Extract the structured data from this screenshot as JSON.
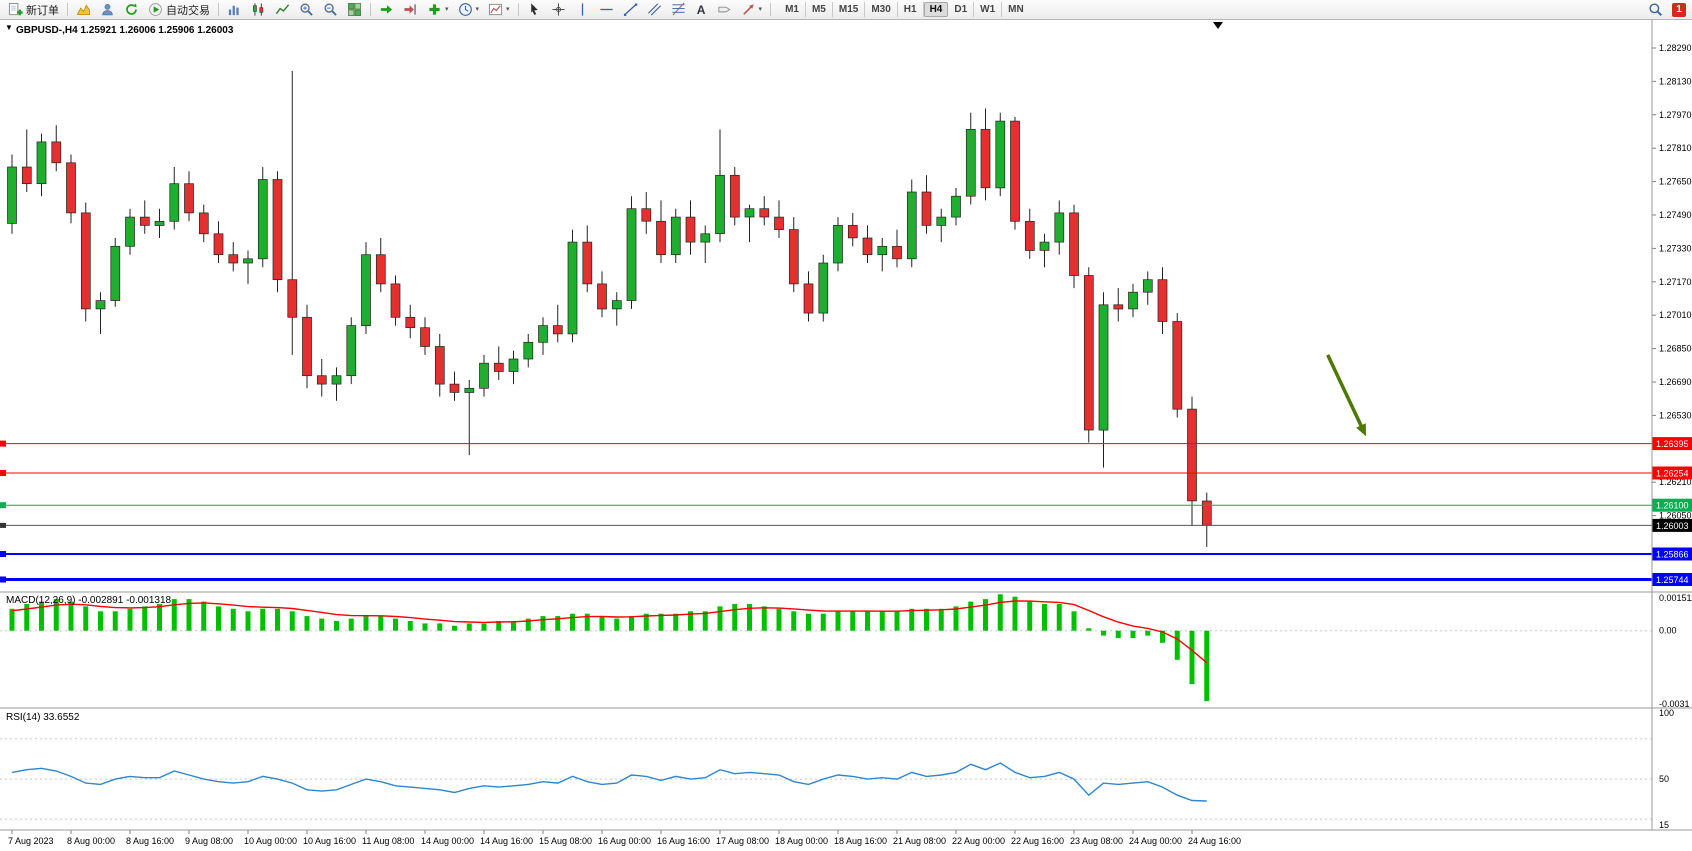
{
  "toolbar": {
    "new_order": "新订单",
    "autotrading": "自动交易",
    "timeframes": [
      "M1",
      "M5",
      "M15",
      "M30",
      "H1",
      "H4",
      "D1",
      "W1",
      "MN"
    ],
    "active_timeframe": "H4",
    "notification_count": "1",
    "icons": [
      "new-order",
      "market-watch",
      "profiles",
      "refresh",
      "autotrading-play",
      "bar-chart",
      "candlestick-chart",
      "line-chart",
      "zoom-in",
      "zoom-out",
      "tile-windows",
      "auto-scroll",
      "chart-shift",
      "add-indicator",
      "periods-clock",
      "templates",
      "cursor",
      "crosshair",
      "vertical-line",
      "horizontal-line",
      "trendline",
      "equidistant-channel",
      "fibonacci",
      "text",
      "text-label",
      "arrows",
      "search",
      "notifications"
    ]
  },
  "chart_data": {
    "type": "candlestick",
    "symbol": "GBPUSD-",
    "period": "H4",
    "header": "GBPUSD-,H4  1.25921 1.26006 1.25906 1.26003",
    "ohlc_values": [
      "1.25921",
      "1.26006",
      "1.25906",
      "1.26003"
    ],
    "colors": {
      "bull": "#1fae2e",
      "bear": "#e53030",
      "wick": "#222222",
      "macd_hist": "#00c000",
      "macd_signal": "#ff0000",
      "rsi_line": "#2e86d0",
      "line_red": "#ff0000",
      "line_green": "#00b050",
      "line_blue": "#0000ff",
      "bid_tag": "#000000",
      "arrow": "#4c7a00"
    },
    "price_axis_labels": [
      "1.28290",
      "1.28130",
      "1.27970",
      "1.27810",
      "1.27650",
      "1.27490",
      "1.27330",
      "1.27170",
      "1.27010",
      "1.26850",
      "1.26690",
      "1.26530",
      "1.26210",
      "1.26050"
    ],
    "hlines": [
      {
        "price": 1.26395,
        "label": "1.26395",
        "color": "#ff0000",
        "width": 1
      },
      {
        "price": 1.26254,
        "label": "1.26254",
        "color": "#ff0000",
        "width": 1
      },
      {
        "price": 1.261,
        "label": "1.26100",
        "color": "#00b050",
        "width": 1
      },
      {
        "price": 1.25866,
        "label": "1.25866",
        "color": "#0000ff",
        "width": 2
      },
      {
        "price": 1.25744,
        "label": "1.25744",
        "color": "#0000ff",
        "width": 3
      }
    ],
    "bid": {
      "price": 1.26003,
      "label": "1.26003"
    },
    "candles": [
      [
        1.2745,
        1.2778,
        1.274,
        1.2772
      ],
      [
        1.2772,
        1.279,
        1.276,
        1.2764
      ],
      [
        1.2764,
        1.2788,
        1.2758,
        1.2784
      ],
      [
        1.2784,
        1.2792,
        1.277,
        1.2774
      ],
      [
        1.2774,
        1.2778,
        1.2745,
        1.275
      ],
      [
        1.275,
        1.2755,
        1.2698,
        1.2704
      ],
      [
        1.2704,
        1.2712,
        1.2692,
        1.2708
      ],
      [
        1.2708,
        1.2738,
        1.2705,
        1.2734
      ],
      [
        1.2734,
        1.2752,
        1.273,
        1.2748
      ],
      [
        1.2748,
        1.2756,
        1.274,
        1.2744
      ],
      [
        1.2744,
        1.2752,
        1.2738,
        1.2746
      ],
      [
        1.2746,
        1.2772,
        1.2742,
        1.2764
      ],
      [
        1.2764,
        1.277,
        1.2746,
        1.275
      ],
      [
        1.275,
        1.2754,
        1.2736,
        1.274
      ],
      [
        1.274,
        1.2746,
        1.2726,
        1.273
      ],
      [
        1.273,
        1.2736,
        1.2722,
        1.2726
      ],
      [
        1.2726,
        1.2732,
        1.2716,
        1.2728
      ],
      [
        1.2728,
        1.2772,
        1.2724,
        1.2766
      ],
      [
        1.2766,
        1.277,
        1.2712,
        1.2718
      ],
      [
        1.2718,
        1.2818,
        1.2682,
        1.27
      ],
      [
        1.27,
        1.2706,
        1.2666,
        1.2672
      ],
      [
        1.2672,
        1.268,
        1.2662,
        1.2668
      ],
      [
        1.2668,
        1.2676,
        1.266,
        1.2672
      ],
      [
        1.2672,
        1.27,
        1.2668,
        1.2696
      ],
      [
        1.2696,
        1.2736,
        1.2692,
        1.273
      ],
      [
        1.273,
        1.2738,
        1.2712,
        1.2716
      ],
      [
        1.2716,
        1.272,
        1.2696,
        1.27
      ],
      [
        1.27,
        1.2706,
        1.269,
        1.2695
      ],
      [
        1.2695,
        1.27,
        1.2682,
        1.2686
      ],
      [
        1.2686,
        1.2692,
        1.2662,
        1.2668
      ],
      [
        1.2668,
        1.2674,
        1.266,
        1.2664
      ],
      [
        1.2664,
        1.267,
        1.2634,
        1.2666
      ],
      [
        1.2666,
        1.2682,
        1.2662,
        1.2678
      ],
      [
        1.2678,
        1.2686,
        1.267,
        1.2674
      ],
      [
        1.2674,
        1.2684,
        1.2668,
        1.268
      ],
      [
        1.268,
        1.2692,
        1.2676,
        1.2688
      ],
      [
        1.2688,
        1.27,
        1.2682,
        1.2696
      ],
      [
        1.2696,
        1.2706,
        1.2688,
        1.2692
      ],
      [
        1.2692,
        1.2742,
        1.2688,
        1.2736
      ],
      [
        1.2736,
        1.2744,
        1.2712,
        1.2716
      ],
      [
        1.2716,
        1.2722,
        1.27,
        1.2704
      ],
      [
        1.2704,
        1.2712,
        1.2696,
        1.2708
      ],
      [
        1.2708,
        1.2758,
        1.2704,
        1.2752
      ],
      [
        1.2752,
        1.276,
        1.274,
        1.2746
      ],
      [
        1.2746,
        1.2756,
        1.2726,
        1.273
      ],
      [
        1.273,
        1.2752,
        1.2726,
        1.2748
      ],
      [
        1.2748,
        1.2756,
        1.273,
        1.2736
      ],
      [
        1.2736,
        1.2744,
        1.2726,
        1.274
      ],
      [
        1.274,
        1.279,
        1.2736,
        1.2768
      ],
      [
        1.2768,
        1.2772,
        1.2744,
        1.2748
      ],
      [
        1.2748,
        1.2754,
        1.2736,
        1.2752
      ],
      [
        1.2752,
        1.2758,
        1.2744,
        1.2748
      ],
      [
        1.2748,
        1.2756,
        1.2738,
        1.2742
      ],
      [
        1.2742,
        1.2748,
        1.2712,
        1.2716
      ],
      [
        1.2716,
        1.2722,
        1.2698,
        1.2702
      ],
      [
        1.2702,
        1.273,
        1.2698,
        1.2726
      ],
      [
        1.2726,
        1.2748,
        1.2722,
        1.2744
      ],
      [
        1.2744,
        1.275,
        1.2734,
        1.2738
      ],
      [
        1.2738,
        1.2744,
        1.2726,
        1.273
      ],
      [
        1.273,
        1.2738,
        1.2722,
        1.2734
      ],
      [
        1.2734,
        1.2742,
        1.2724,
        1.2728
      ],
      [
        1.2728,
        1.2766,
        1.2724,
        1.276
      ],
      [
        1.276,
        1.2768,
        1.274,
        1.2744
      ],
      [
        1.2744,
        1.2752,
        1.2736,
        1.2748
      ],
      [
        1.2748,
        1.2762,
        1.2744,
        1.2758
      ],
      [
        1.2758,
        1.2798,
        1.2754,
        1.279
      ],
      [
        1.279,
        1.28,
        1.2756,
        1.2762
      ],
      [
        1.2762,
        1.2798,
        1.2758,
        1.2794
      ],
      [
        1.2794,
        1.2796,
        1.2742,
        1.2746
      ],
      [
        1.2746,
        1.2752,
        1.2728,
        1.2732
      ],
      [
        1.2732,
        1.274,
        1.2724,
        1.2736
      ],
      [
        1.2736,
        1.2756,
        1.273,
        1.275
      ],
      [
        1.275,
        1.2754,
        1.2714,
        1.272
      ],
      [
        1.272,
        1.2724,
        1.264,
        1.2646
      ],
      [
        1.2646,
        1.2712,
        1.2628,
        1.2706
      ],
      [
        1.2706,
        1.2714,
        1.2698,
        1.2704
      ],
      [
        1.2704,
        1.2716,
        1.27,
        1.2712
      ],
      [
        1.2712,
        1.2722,
        1.2706,
        1.2718
      ],
      [
        1.2718,
        1.2724,
        1.2692,
        1.2698
      ],
      [
        1.2698,
        1.2702,
        1.2652,
        1.2656
      ],
      [
        1.2656,
        1.2662,
        1.26,
        1.2612
      ],
      [
        1.2612,
        1.2616,
        1.259,
        1.26003
      ]
    ],
    "time_labels": [
      "7 Aug 2023",
      "8 Aug 00:00",
      "8 Aug 16:00",
      "9 Aug 08:00",
      "10 Aug 00:00",
      "10 Aug 16:00",
      "11 Aug 08:00",
      "14 Aug 00:00",
      "14 Aug 16:00",
      "15 Aug 08:00",
      "16 Aug 00:00",
      "16 Aug 16:00",
      "17 Aug 08:00",
      "18 Aug 00:00",
      "18 Aug 16:00",
      "21 Aug 08:00",
      "22 Aug 00:00",
      "22 Aug 16:00",
      "23 Aug 08:00",
      "24 Aug 00:00",
      "24 Aug 16:00"
    ],
    "bars_per_label": 4,
    "macd": {
      "display": "MACD(12,26,9) -0.002891 -0.001318",
      "scale_labels": [
        "0.001511",
        "0.00",
        "-0.0031"
      ],
      "histogram": [
        0.0009,
        0.0011,
        0.0012,
        0.0013,
        0.0012,
        0.001,
        0.0008,
        0.0008,
        0.0009,
        0.001,
        0.0011,
        0.0013,
        0.0013,
        0.0012,
        0.001,
        0.0009,
        0.0008,
        0.0009,
        0.0009,
        0.0008,
        0.0006,
        0.0005,
        0.0004,
        0.0005,
        0.0006,
        0.0006,
        0.0005,
        0.0004,
        0.0003,
        0.0003,
        0.0002,
        0.0003,
        0.0003,
        0.0004,
        0.0004,
        0.0005,
        0.0006,
        0.0006,
        0.0007,
        0.0007,
        0.0006,
        0.0005,
        0.0006,
        0.0007,
        0.0007,
        0.0007,
        0.0008,
        0.0008,
        0.001,
        0.0011,
        0.0011,
        0.001,
        0.0009,
        0.0008,
        0.0007,
        0.0007,
        0.0008,
        0.0008,
        0.0008,
        0.0008,
        0.0008,
        0.0009,
        0.0009,
        0.0009,
        0.001,
        0.0012,
        0.0013,
        0.0015,
        0.0014,
        0.0012,
        0.0011,
        0.0011,
        0.0008,
        0.0001,
        -0.0002,
        -0.0003,
        -0.0003,
        -0.0002,
        -0.0005,
        -0.0012,
        -0.0022,
        -0.0029
      ],
      "signal": [
        0.000825,
        0.000894,
        0.000971,
        0.001053,
        0.00109,
        0.001067,
        0.001,
        0.00095,
        0.000938,
        0.000953,
        0.00099,
        0.001068,
        0.001126,
        0.001144,
        0.001108,
        0.001056,
        0.000992,
        0.000969,
        0.000952,
        0.000914,
        0.000835,
        0.000752,
        0.000664,
        0.000623,
        0.000617,
        0.000613,
        0.000585,
        0.000539,
        0.000479,
        0.000434,
        0.000376,
        0.000357,
        0.000343,
        0.000357,
        0.000368,
        0.000401,
        0.000451,
        0.000488,
        0.000541,
        0.000581,
        0.000586,
        0.000564,
        0.000573,
        0.000605,
        0.000629,
        0.000647,
        0.000685,
        0.000714,
        0.000786,
        0.000864,
        0.000923,
        0.000942,
        0.000932,
        0.000899,
        0.000849,
        0.000812,
        0.000809,
        0.000807,
        0.000805,
        0.000804,
        0.000803,
        0.000827,
        0.000845,
        0.000859,
        0.000894,
        0.000971,
        0.001053,
        0.001165,
        0.001224,
        0.001218,
        0.001188,
        0.001166,
        0.001075,
        0.000831,
        0.000573,
        0.000355,
        0.000191,
        9.3e-05,
        -5.5e-05,
        -0.000341,
        -0.000806,
        -0.00132
      ]
    },
    "rsi": {
      "display": "RSI(14) 33.6552",
      "value": "33.6552",
      "scale_labels": [
        "100",
        "50",
        "15"
      ],
      "levels": [
        80,
        50,
        20
      ],
      "values": [
        55,
        57,
        58,
        56,
        52,
        47,
        46,
        50,
        52,
        51,
        51,
        56,
        53,
        50,
        48,
        47,
        48,
        52,
        50,
        47,
        42,
        41,
        42,
        46,
        50,
        48,
        45,
        44,
        43,
        42,
        40,
        43,
        45,
        44,
        45,
        46,
        48,
        47,
        52,
        48,
        46,
        47,
        53,
        52,
        49,
        52,
        50,
        51,
        57,
        54,
        55,
        54,
        53,
        48,
        46,
        50,
        53,
        52,
        50,
        51,
        50,
        55,
        52,
        53,
        55,
        61,
        57,
        62,
        55,
        51,
        52,
        55,
        50,
        38,
        47,
        46,
        47,
        48,
        44,
        38,
        34,
        33.65
      ]
    },
    "arrow": {
      "from_bar": 89.2,
      "from_price": 1.2682,
      "to_bar": 91.8,
      "to_price": 1.2643,
      "color": "#4c7a00"
    }
  }
}
